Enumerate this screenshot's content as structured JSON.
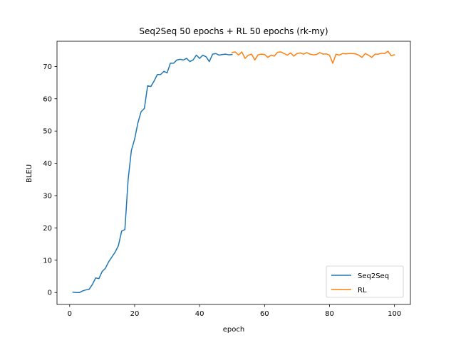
{
  "chart_data": {
    "type": "line",
    "title": "Seq2Seq 50 epochs + RL 50 epochs (rk-my)",
    "xlabel": "epoch",
    "ylabel": "BLEU",
    "xlim": [
      -3.9,
      104.9
    ],
    "ylim": [
      -3.7,
      77.8
    ],
    "xticks": [
      0,
      20,
      40,
      60,
      80,
      100
    ],
    "yticks": [
      0,
      10,
      20,
      30,
      40,
      50,
      60,
      70
    ],
    "grid": false,
    "legend_position": "lower right",
    "series": [
      {
        "name": "Seq2Seq",
        "color": "#1f77b4",
        "x": [
          1,
          2,
          3,
          4,
          5,
          6,
          7,
          8,
          9,
          10,
          11,
          12,
          13,
          14,
          15,
          16,
          17,
          18,
          19,
          20,
          21,
          22,
          23,
          24,
          25,
          26,
          27,
          28,
          29,
          30,
          31,
          32,
          33,
          34,
          35,
          36,
          37,
          38,
          39,
          40,
          41,
          42,
          43,
          44,
          45,
          46,
          47,
          48,
          49,
          50
        ],
        "y": [
          0.1,
          0.0,
          0.0,
          0.5,
          0.8,
          1.0,
          2.5,
          4.5,
          4.3,
          6.5,
          7.5,
          9.5,
          11.0,
          12.5,
          14.5,
          19.0,
          19.5,
          35.0,
          44.0,
          47.5,
          52.5,
          56.0,
          57.0,
          64.0,
          63.8,
          65.5,
          67.5,
          67.5,
          68.5,
          68.0,
          71.0,
          71.0,
          72.0,
          72.2,
          72.0,
          72.5,
          71.5,
          72.0,
          73.5,
          72.5,
          73.5,
          73.0,
          71.5,
          73.8,
          74.0,
          73.5,
          73.7,
          73.8,
          73.6,
          73.7
        ]
      },
      {
        "name": "RL",
        "color": "#ff7f0e",
        "x": [
          50,
          51,
          52,
          53,
          54,
          55,
          56,
          57,
          58,
          59,
          60,
          61,
          62,
          63,
          64,
          65,
          66,
          67,
          68,
          69,
          70,
          71,
          72,
          73,
          74,
          75,
          76,
          77,
          78,
          79,
          80,
          81,
          82,
          83,
          84,
          85,
          86,
          87,
          88,
          89,
          90,
          91,
          92,
          93,
          94,
          95,
          96,
          97,
          98,
          99,
          100
        ],
        "y": [
          74.3,
          74.5,
          73.5,
          74.5,
          72.5,
          73.5,
          73.8,
          72.0,
          73.6,
          73.8,
          73.7,
          72.8,
          73.5,
          73.2,
          74.4,
          74.5,
          74.0,
          73.5,
          74.2,
          73.2,
          74.0,
          74.2,
          73.8,
          74.3,
          73.8,
          73.6,
          73.7,
          74.3,
          73.8,
          73.9,
          73.5,
          71.0,
          73.8,
          73.5,
          74.0,
          73.9,
          74.0,
          74.0,
          73.9,
          73.5,
          72.8,
          74.0,
          73.5,
          72.8,
          73.8,
          73.8,
          74.1,
          74.0,
          74.7,
          73.3,
          73.6
        ]
      }
    ]
  }
}
